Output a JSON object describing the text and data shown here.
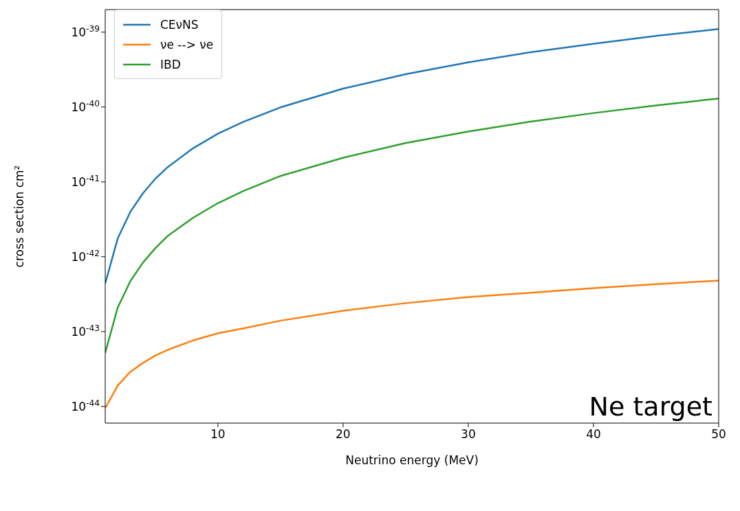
{
  "chart_data": {
    "type": "line",
    "xlabel": "Neutrino energy (MeV)",
    "ylabel": "cross section cm²",
    "log": "y",
    "grid": false,
    "legend": "top left",
    "x": [
      1,
      2,
      3,
      4,
      5,
      6,
      8,
      10,
      12,
      15,
      20,
      25,
      30,
      35,
      40,
      45,
      50
    ],
    "series": [
      {
        "name": "CEνNS",
        "color": "#1f77b4",
        "values": [
          4.4e-43,
          1.76e-42,
          3.96e-42,
          7e-42,
          1.1e-41,
          1.58e-41,
          2.8e-41,
          4.4e-41,
          6.3e-41,
          9.9e-41,
          1.76e-40,
          2.75e-40,
          3.96e-40,
          5.4e-40,
          7e-40,
          8.9e-40,
          1.1e-39
        ]
      },
      {
        "name": "νe --> νe",
        "color": "#ff7f0e",
        "values": [
          9.5e-45,
          1.9e-44,
          2.9e-44,
          3.8e-44,
          4.8e-44,
          5.7e-44,
          7.6e-44,
          9.5e-44,
          1.1e-43,
          1.4e-43,
          1.9e-43,
          2.4e-43,
          2.9e-43,
          3.3e-43,
          3.8e-43,
          4.3e-43,
          4.8e-43
        ]
      },
      {
        "name": "IBD",
        "color": "#2ca02c",
        "values": [
          5.2e-44,
          2.1e-43,
          4.7e-43,
          8.3e-43,
          1.3e-42,
          1.9e-42,
          3.3e-42,
          5.2e-42,
          7.5e-42,
          1.2e-41,
          2.1e-41,
          3.3e-41,
          4.7e-41,
          6.4e-41,
          8.3e-41,
          1.05e-40,
          1.3e-40
        ]
      }
    ],
    "xlim": [
      1,
      50
    ],
    "xticks": [
      10,
      20,
      30,
      40,
      50
    ],
    "ylim": [
      6e-45,
      2e-39
    ],
    "yticks": [
      {
        "value": 1e-44,
        "label": "10$^{-44}$"
      },
      {
        "value": 1e-43,
        "label": "10$^{-43}$"
      },
      {
        "value": 1e-42,
        "label": "10$^{-42}$"
      },
      {
        "value": 1e-41,
        "label": "10$^{-41}$"
      },
      {
        "value": 1e-40,
        "label": "10$^{-40}$"
      },
      {
        "value": 1e-39,
        "label": "10$^{-39}$"
      }
    ],
    "annotations": [
      "Ne target"
    ]
  }
}
